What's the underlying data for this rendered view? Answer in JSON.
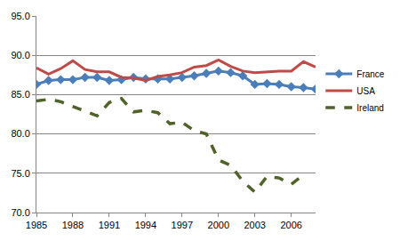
{
  "chart_data": {
    "type": "line",
    "x": [
      1985,
      1986,
      1987,
      1988,
      1989,
      1990,
      1991,
      1992,
      1993,
      1994,
      1995,
      1996,
      1997,
      1998,
      1999,
      2000,
      2001,
      2002,
      2003,
      2004,
      2005,
      2006,
      2007,
      2008
    ],
    "series": [
      {
        "name": "France",
        "color": "#4a7ebb",
        "marker": "diamond",
        "line_style": "solid",
        "values": [
          86.3,
          86.8,
          86.9,
          86.9,
          87.2,
          87.2,
          86.8,
          86.9,
          87.2,
          87.0,
          87.0,
          87.0,
          87.2,
          87.4,
          87.7,
          88.0,
          87.8,
          87.4,
          86.3,
          86.4,
          86.3,
          86.0,
          85.9,
          85.7
        ]
      },
      {
        "name": "USA",
        "color": "#be4b48",
        "marker": "none",
        "line_style": "solid",
        "values": [
          88.4,
          87.6,
          88.3,
          89.3,
          88.2,
          87.9,
          87.9,
          87.2,
          87.1,
          86.8,
          87.3,
          87.5,
          87.8,
          88.5,
          88.7,
          89.4,
          88.6,
          88.0,
          87.8,
          87.9,
          88.0,
          88.0,
          89.2,
          88.5
        ]
      },
      {
        "name": "Ireland",
        "color": "#4f6228",
        "marker": "none",
        "line_style": "dash",
        "values": [
          84.2,
          84.4,
          84.1,
          83.5,
          82.9,
          82.3,
          84.0,
          84.5,
          82.8,
          83.0,
          82.7,
          81.3,
          81.5,
          80.4,
          80.0,
          76.7,
          76.0,
          74.0,
          72.6,
          74.6,
          74.4,
          73.6,
          74.8,
          null
        ]
      }
    ],
    "xlim": [
      1985,
      2008
    ],
    "xticks": [
      1985,
      1988,
      1991,
      1994,
      1997,
      2000,
      2003,
      2006
    ],
    "ylim": [
      70,
      95
    ],
    "yticks": [
      {
        "value": 70,
        "label": "70.0"
      },
      {
        "value": 75,
        "label": "75.0"
      },
      {
        "value": 80,
        "label": "80.0"
      },
      {
        "value": 85,
        "label": "85.0"
      },
      {
        "value": 90,
        "label": "90.0"
      },
      {
        "value": 95,
        "label": "95.0"
      }
    ],
    "grid": true,
    "legend": "right"
  }
}
